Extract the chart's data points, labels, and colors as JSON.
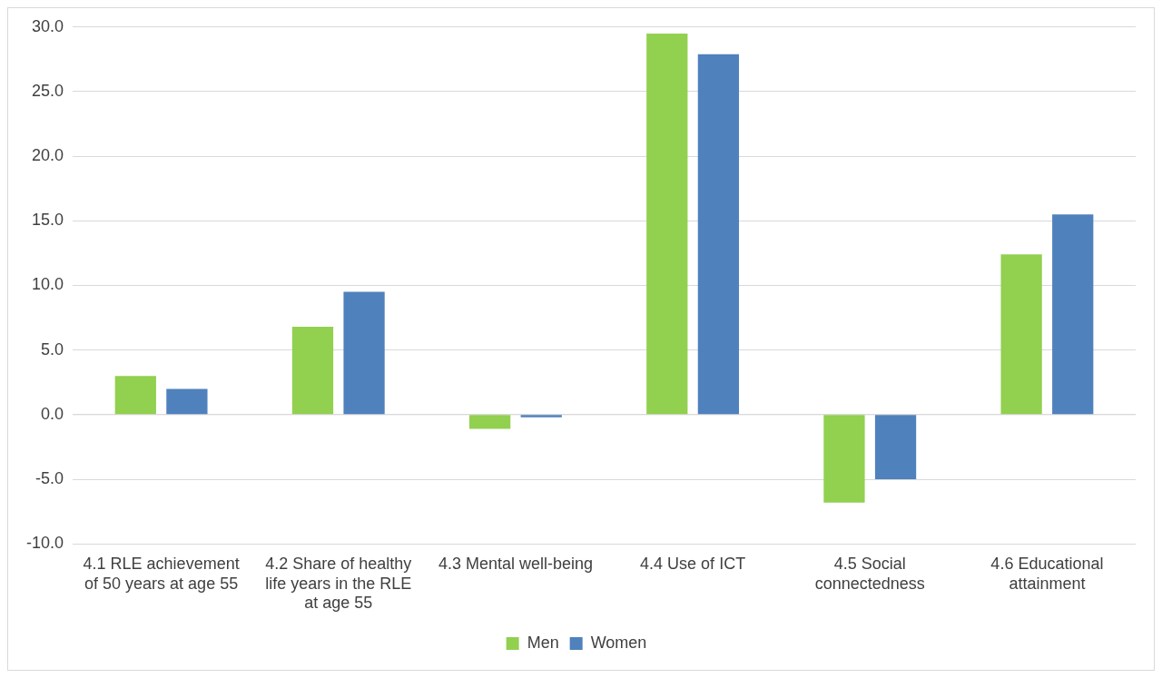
{
  "chart_data": {
    "type": "bar",
    "categories": [
      "4.1 RLE achievement of 50 years at age 55",
      "4.2 Share of healthy life years in the RLE at age 55",
      "4.3 Mental well-being",
      "4.4 Use of ICT",
      "4.5 Social connectedness",
      "4.6 Educational attainment"
    ],
    "series": [
      {
        "name": "Men",
        "color": "#92d050",
        "values": [
          3.0,
          6.8,
          -1.1,
          29.5,
          -6.8,
          12.4
        ]
      },
      {
        "name": "Women",
        "color": "#4f81bd",
        "values": [
          2.0,
          9.5,
          -0.2,
          27.9,
          -5.0,
          15.5
        ]
      }
    ],
    "ylim": [
      -10,
      30
    ],
    "yticks": [
      {
        "value": -10,
        "label": "-10.0"
      },
      {
        "value": -5,
        "label": "-5.0"
      },
      {
        "value": 0,
        "label": "0.0"
      },
      {
        "value": 5,
        "label": "5.0"
      },
      {
        "value": 10,
        "label": "10.0"
      },
      {
        "value": 15,
        "label": "15.0"
      },
      {
        "value": 20,
        "label": "20.0"
      },
      {
        "value": 25,
        "label": "25.0"
      },
      {
        "value": 30,
        "label": "30.0"
      }
    ],
    "grid": "y",
    "legend": "bottom"
  }
}
